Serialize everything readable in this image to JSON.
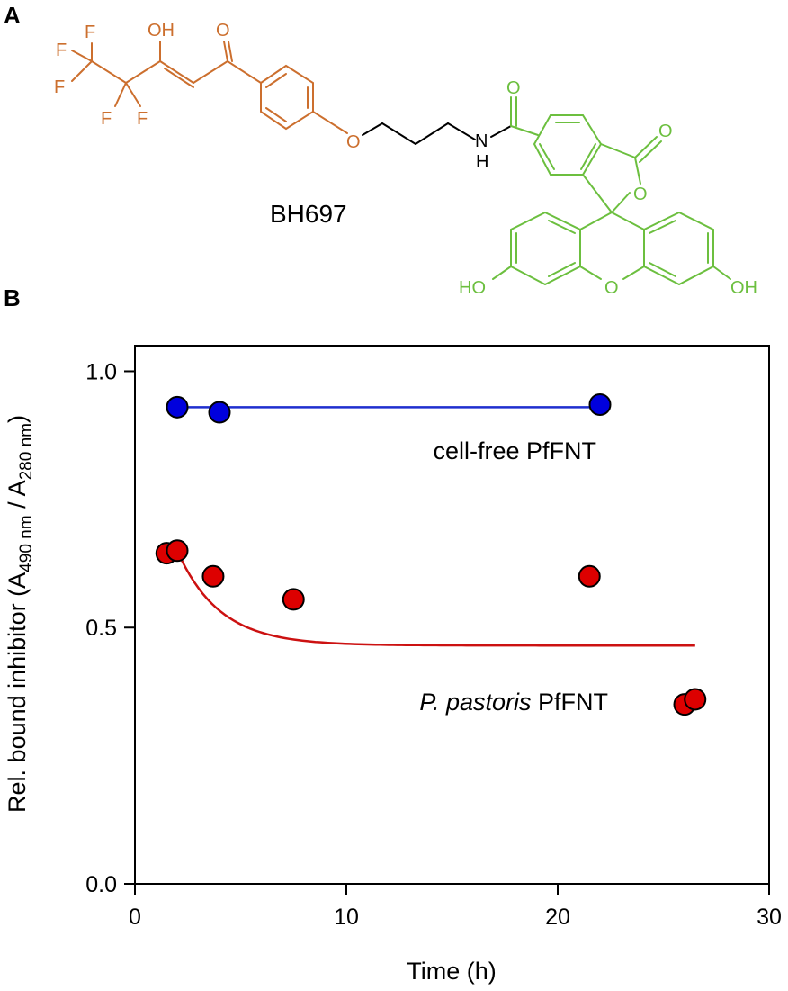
{
  "panels": {
    "a": "A",
    "b": "B"
  },
  "compound": {
    "name": "BH697",
    "colors": {
      "head": "#cc6f2e",
      "linker": "#000000",
      "fluorescein": "#6cbf3f"
    },
    "atoms": {
      "hydroxyl_enol": "OH",
      "keto_o": "O",
      "fluorine": "F",
      "ether_o": "O",
      "amide_n": "N",
      "amide_h": "H",
      "amide_o": "O",
      "lactone_carbonyl_o": "O",
      "lactone_ring_o": "O",
      "xanthene_o": "O",
      "phenol_left": "HO",
      "phenol_right": "OH"
    }
  },
  "chart_data": {
    "type": "scatter",
    "xlabel": "Time (h)",
    "ylabel": {
      "main": "Rel. bound inhibitor (A",
      "sub1": "490 nm",
      "mid": " / A",
      "sub2": "280 nm",
      "end": ")"
    },
    "xlim": [
      0,
      30
    ],
    "ylim": [
      0,
      1.05
    ],
    "xticks": [
      0,
      10,
      20,
      30
    ],
    "xtick_labels": [
      "0",
      "10",
      "20",
      "30"
    ],
    "yticks": [
      0.0,
      0.5,
      1.0
    ],
    "ytick_labels": [
      "0.0",
      "0.5",
      "1.0"
    ],
    "grid": false,
    "series": [
      {
        "name": "cell-free PfFNT",
        "color": "#0000dd",
        "line_color": "#1f2fcf",
        "points": [
          [
            2.0,
            0.93
          ],
          [
            4.0,
            0.92
          ],
          [
            22.0,
            0.935
          ]
        ],
        "fit": {
          "kind": "constant",
          "y": 0.93,
          "x_range": [
            2.0,
            22.0
          ]
        }
      },
      {
        "name_italic": "P. pastoris",
        "name_rest": " PfFNT",
        "color": "#dd0000",
        "line_color": "#cc1111",
        "points": [
          [
            1.5,
            0.645
          ],
          [
            2.0,
            0.65
          ],
          [
            3.7,
            0.6
          ],
          [
            7.5,
            0.555
          ],
          [
            21.5,
            0.6
          ],
          [
            26.0,
            0.35
          ],
          [
            26.5,
            0.36
          ]
        ],
        "fit": {
          "kind": "exponential_decay",
          "x_range": [
            2.0,
            26.5
          ],
          "y0": 0.65,
          "plateau": 0.465,
          "k": 0.5
        }
      }
    ]
  }
}
